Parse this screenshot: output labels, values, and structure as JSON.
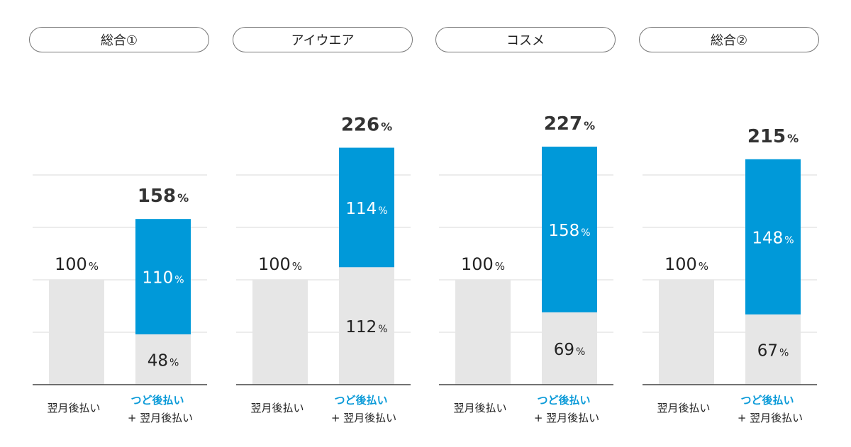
{
  "colors": {
    "base": "#e6e6e6",
    "tsudo": "#0099d9",
    "grid": "#d9d9d9",
    "axis": "#444444",
    "accent_text": "#0a9ad8"
  },
  "legend": {
    "unit": "%",
    "bar1_label": "翌月後払い",
    "bar2_label_line1": "つど後払い",
    "bar2_label_line2": "+ 翌月後払い"
  },
  "chart_data": [
    {
      "type": "bar",
      "title": "総合①",
      "ylim": [
        0,
        250
      ],
      "grid": true,
      "categories": [
        "翌月後払い",
        "つど後払い + 翌月後払い"
      ],
      "series": [
        {
          "name": "翌月後払い",
          "values": [
            100,
            48
          ]
        },
        {
          "name": "つど後払い",
          "values": [
            0,
            110
          ]
        }
      ],
      "totals": [
        100,
        158
      ]
    },
    {
      "type": "bar",
      "title": "アイウエア",
      "ylim": [
        0,
        250
      ],
      "grid": true,
      "categories": [
        "翌月後払い",
        "つど後払い + 翌月後払い"
      ],
      "series": [
        {
          "name": "翌月後払い",
          "values": [
            100,
            112
          ]
        },
        {
          "name": "つど後払い",
          "values": [
            0,
            114
          ]
        }
      ],
      "totals": [
        100,
        226
      ]
    },
    {
      "type": "bar",
      "title": "コスメ",
      "ylim": [
        0,
        250
      ],
      "grid": true,
      "categories": [
        "翌月後払い",
        "つど後払い + 翌月後払い"
      ],
      "series": [
        {
          "name": "翌月後払い",
          "values": [
            100,
            69
          ]
        },
        {
          "name": "つど後払い",
          "values": [
            0,
            158
          ]
        }
      ],
      "totals": [
        100,
        227
      ]
    },
    {
      "type": "bar",
      "title": "総合②",
      "ylim": [
        0,
        250
      ],
      "grid": true,
      "categories": [
        "翌月後払い",
        "つど後払い + 翌月後払い"
      ],
      "series": [
        {
          "name": "翌月後払い",
          "values": [
            100,
            67
          ]
        },
        {
          "name": "つど後払い",
          "values": [
            0,
            148
          ]
        }
      ],
      "totals": [
        100,
        215
      ]
    }
  ]
}
